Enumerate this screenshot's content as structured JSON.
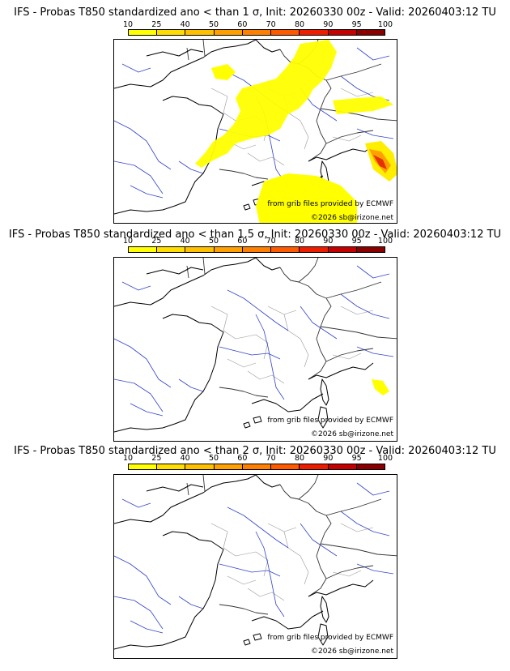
{
  "colorbar": {
    "ticks": [
      "10",
      "25",
      "40",
      "50",
      "60",
      "70",
      "80",
      "90",
      "95",
      "100"
    ],
    "colors": [
      "#ffff00",
      "#ffdd00",
      "#ffc000",
      "#ffa000",
      "#ff8000",
      "#ff5a00",
      "#ee1d00",
      "#c40000",
      "#8a0000"
    ]
  },
  "panels": [
    {
      "title": "IFS - Probas T850  standardized ano < than 1 σ, Init: 20260330 00z - Valid: 20260403:12 TU",
      "source": "from grib files provided by ECMWF",
      "copyright": "©2026 sb@irizone.net"
    },
    {
      "title": "IFS - Probas T850  standardized ano < than 1.5 σ, Init: 20260330 00z - Valid: 20260403:12 TU",
      "source": "from grib files provided by ECMWF",
      "copyright": "©2026 sb@irizone.net"
    },
    {
      "title": "IFS - Probas T850  standardized ano < than 2 σ, Init: 20260330 00z - Valid: 20260403:12 TU",
      "source": "from grib files provided by ECMWF",
      "copyright": "©2026 sb@irizone.net"
    }
  ]
}
